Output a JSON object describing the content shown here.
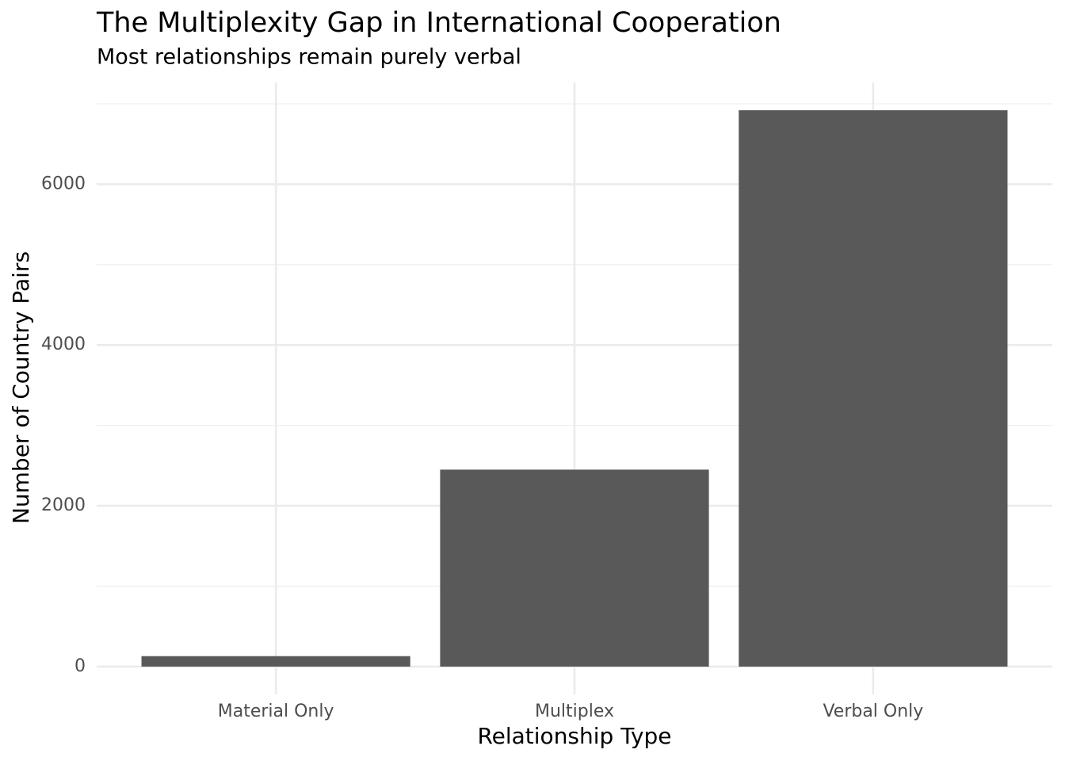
{
  "chart_data": {
    "type": "bar",
    "title": "The Multiplexity Gap in International Cooperation",
    "subtitle": "Most relationships remain purely verbal",
    "x_label": "Relationship Type",
    "y_label": "Number of Country Pairs",
    "categories": [
      "Material Only",
      "Multiplex",
      "Verbal Only"
    ],
    "values": [
      130,
      2450,
      6920
    ],
    "color": "#595959",
    "ylim": [
      -346,
      7266
    ],
    "yticks": [
      0,
      2000,
      4000,
      6000
    ],
    "y_minor_ticks": [
      1000,
      3000,
      5000,
      7000
    ],
    "grid": true
  }
}
